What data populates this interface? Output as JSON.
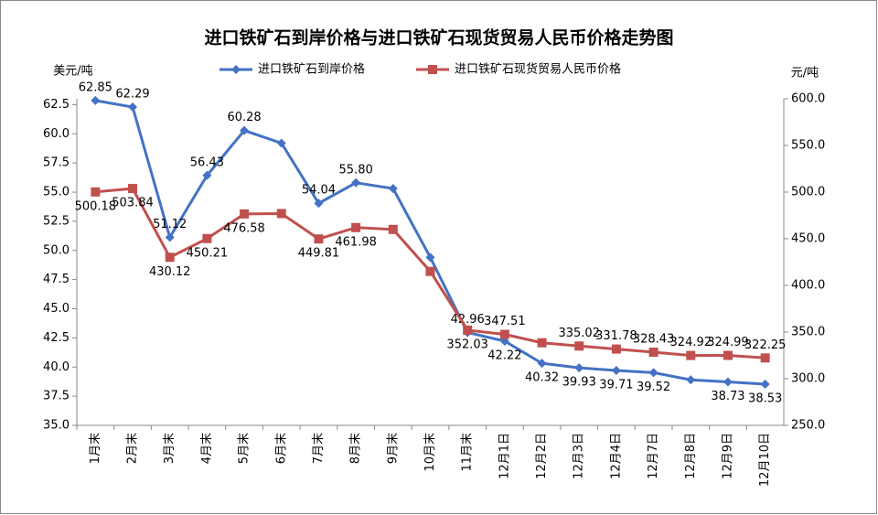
{
  "chart_data": {
    "type": "line",
    "title": "进口铁矿石到岸价格与进口铁矿石现货贸易人民币价格走势图",
    "y_label": "美元/吨",
    "y2_label": "元/吨",
    "categories": [
      "1月末",
      "2月末",
      "3月末",
      "4月末",
      "5月末",
      "6月末",
      "7月末",
      "8月末",
      "9月末",
      "10月末",
      "11月末",
      "12月1日",
      "12月2日",
      "12月3日",
      "12月4日",
      "12月7日",
      "12月8日",
      "12月9日",
      "12月10日"
    ],
    "ylim": [
      35,
      63
    ],
    "yticks": [
      {
        "value": 35,
        "label": "35.0"
      },
      {
        "value": 37.5,
        "label": "37.5"
      },
      {
        "value": 40,
        "label": "40.0"
      },
      {
        "value": 42.5,
        "label": "42.5"
      },
      {
        "value": 45,
        "label": "45.0"
      },
      {
        "value": 47.5,
        "label": "47.5"
      },
      {
        "value": 50,
        "label": "50.0"
      },
      {
        "value": 52.5,
        "label": "52.5"
      },
      {
        "value": 55,
        "label": "55.0"
      },
      {
        "value": 57.5,
        "label": "57.5"
      },
      {
        "value": 60,
        "label": "60.0"
      },
      {
        "value": 62.5,
        "label": "62.5"
      }
    ],
    "y2lim": [
      250,
      600
    ],
    "y2ticks": [
      {
        "value": 250,
        "label": "250.0"
      },
      {
        "value": 300,
        "label": "300.0"
      },
      {
        "value": 350,
        "label": "350.0"
      },
      {
        "value": 400,
        "label": "400.0"
      },
      {
        "value": 450,
        "label": "450.0"
      },
      {
        "value": 500,
        "label": "500.0"
      },
      {
        "value": 550,
        "label": "550.0"
      },
      {
        "value": 600,
        "label": "600.0"
      }
    ],
    "legend": "top",
    "series": [
      {
        "name": "进口铁矿石到岸价格",
        "color": "#4472c4",
        "marker": "diamond",
        "axis": "y",
        "values": [
          62.85,
          62.29,
          51.12,
          56.43,
          60.28,
          59.2,
          54.04,
          55.8,
          55.3,
          49.4,
          42.96,
          42.22,
          40.32,
          39.93,
          39.71,
          39.52,
          38.9,
          38.73,
          38.53
        ],
        "value_labels": [
          "62.85",
          "62.29",
          "51.12",
          "56.43",
          "60.28",
          null,
          "54.04",
          "55.80",
          null,
          null,
          "42.96",
          "42.22",
          "40.32",
          "39.93",
          "39.71",
          "39.52",
          null,
          "38.73",
          "38.53"
        ]
      },
      {
        "name": "进口铁矿石现货贸易人民币价格",
        "color": "#c0504d",
        "marker": "square",
        "axis": "y2",
        "values": [
          500.18,
          503.84,
          430.12,
          450.21,
          476.58,
          477,
          449.81,
          461.98,
          460,
          415,
          352.03,
          347.51,
          338.5,
          335.02,
          331.78,
          328.43,
          324.92,
          324.99,
          322.25
        ],
        "value_labels": [
          "500.18",
          "503.84",
          "430.12",
          "450.21",
          "476.58",
          null,
          "449.81",
          "461.98",
          null,
          null,
          "352.03",
          "347.51",
          null,
          "335.02",
          "331.78",
          "328.43",
          "324.92",
          "324.99",
          "322.25"
        ]
      }
    ]
  }
}
